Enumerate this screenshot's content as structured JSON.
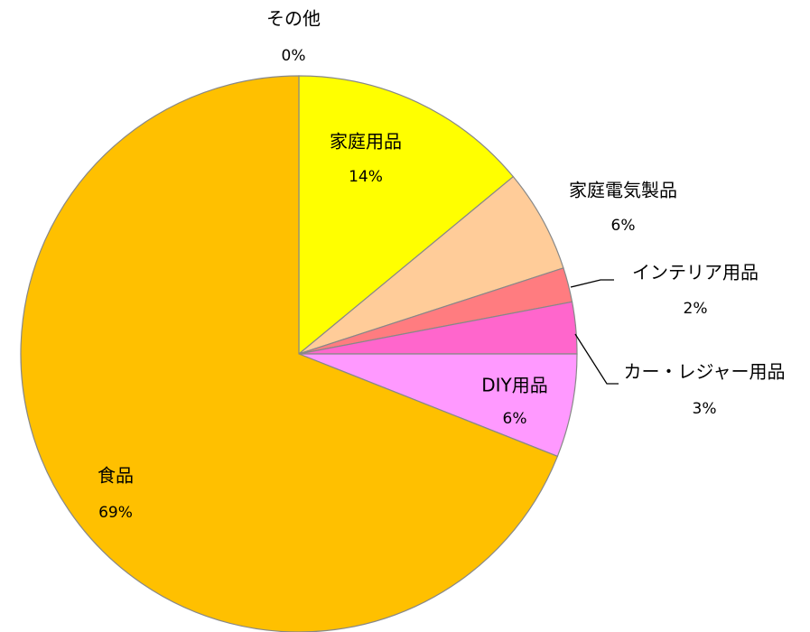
{
  "chart_data": {
    "type": "pie",
    "categories": [
      "その他",
      "家庭用品",
      "家庭電気製品",
      "インテリア用品",
      "カー・レジャー用品",
      "DIY用品",
      "食品"
    ],
    "values": [
      0,
      14,
      6,
      2,
      3,
      6,
      69
    ],
    "value_labels": [
      "0%",
      "14%",
      "6%",
      "2%",
      "3%",
      "6%",
      "69%"
    ],
    "colors": [
      "#99CCFF",
      "#FFFF00",
      "#FFCC99",
      "#FF7C80",
      "#FF66CC",
      "#FF99FF",
      "#FFC000"
    ]
  }
}
